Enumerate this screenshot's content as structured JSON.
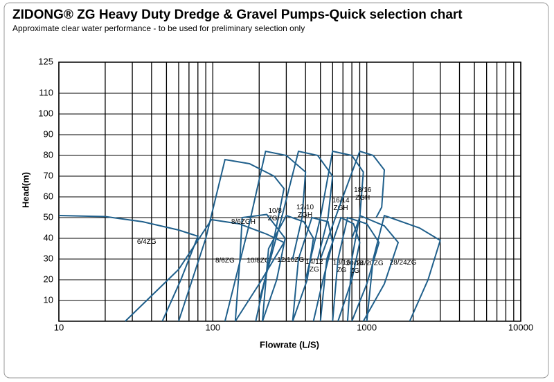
{
  "chart_data": {
    "type": "line",
    "title": "ZIDONG® ZG  Heavy Duty Dredge & Gravel Pumps-Quick selection chart",
    "subtitle": "Approximate clear water performance - to be used for preliminary selection only",
    "x_label": "Flowrate (L/S)",
    "y_label": "Head(m)",
    "x_scale": "log",
    "grid": true,
    "color": "#1f5f8b",
    "xlim": [
      10,
      10000
    ],
    "xticks": [
      10,
      100,
      1000,
      10000
    ],
    "ylim": [
      0,
      125
    ],
    "yticks": [
      10,
      20,
      30,
      40,
      50,
      60,
      70,
      80,
      90,
      100,
      110,
      125
    ],
    "series": [
      {
        "name": "6/4ZG",
        "x": [
          10,
          20,
          35,
          60,
          80,
          62,
          47
        ],
        "values": [
          51,
          50.5,
          48,
          44,
          41,
          20,
          0
        ]
      },
      {
        "name": "8/6ZG",
        "x": [
          27,
          60,
          98,
          148,
          224,
          290,
          200,
          140
        ],
        "values": [
          0,
          25,
          49,
          47,
          42,
          38,
          18,
          0
        ]
      },
      {
        "name": "10/8ZG",
        "x": [
          140,
          150,
          155,
          224,
          295,
          260,
          210
        ],
        "values": [
          0,
          30,
          50,
          51.5,
          40,
          20,
          0
        ]
      },
      {
        "name": "12/10ZG",
        "x": [
          210,
          230,
          300,
          390,
          450,
          410,
          330
        ],
        "values": [
          0,
          35,
          51,
          48,
          40,
          20,
          0
        ]
      },
      {
        "name": "14/12 ZG",
        "x": [
          330,
          360,
          440,
          560,
          600,
          520,
          450
        ],
        "values": [
          0,
          30,
          50,
          48,
          38,
          20,
          0
        ]
      },
      {
        "name": "18/16 ZG",
        "x": [
          500,
          550,
          680,
          820,
          900,
          800,
          650
        ],
        "values": [
          0,
          30,
          50,
          47,
          38,
          20,
          0
        ]
      },
      {
        "name": "20/18 ZG",
        "x": [
          600,
          650,
          750,
          1000,
          1200,
          1000,
          800
        ],
        "values": [
          0,
          30,
          50,
          47,
          38,
          18,
          0
        ]
      },
      {
        "name": "24/20ZG",
        "x": [
          750,
          800,
          900,
          1300,
          1600,
          1300,
          950
        ],
        "values": [
          0,
          30,
          51,
          46,
          38,
          18,
          0
        ]
      },
      {
        "name": "28/24ZG",
        "x": [
          1000,
          1100,
          1300,
          2200,
          3000,
          2500,
          1900
        ],
        "values": [
          0,
          30,
          51,
          45,
          39,
          20,
          0
        ]
      },
      {
        "name": "8/6ZGH",
        "x": [
          60,
          90,
          120,
          173,
          250,
          290,
          250,
          190
        ],
        "values": [
          0,
          40,
          78,
          76,
          70,
          64,
          40,
          0
        ]
      },
      {
        "name": "10/8 ZGH",
        "x": [
          120,
          170,
          220,
          300,
          400,
          380,
          330
        ],
        "values": [
          0,
          45,
          82,
          80,
          72,
          50,
          30
        ]
      },
      {
        "name": "12/10 ZGH",
        "x": [
          200,
          280,
          360,
          480,
          600,
          560,
          480
        ],
        "values": [
          10,
          50,
          82,
          80,
          70,
          50,
          30
        ]
      },
      {
        "name": "16/14 ZGH",
        "x": [
          400,
          500,
          600,
          800,
          950,
          900,
          800
        ],
        "values": [
          20,
          50,
          82,
          80,
          72,
          50,
          40
        ]
      },
      {
        "name": "18/16 ZGH",
        "x": [
          500,
          700,
          900,
          1100,
          1300,
          1250,
          1150
        ],
        "values": [
          30,
          60,
          82,
          80,
          73,
          55,
          50
        ]
      }
    ]
  }
}
